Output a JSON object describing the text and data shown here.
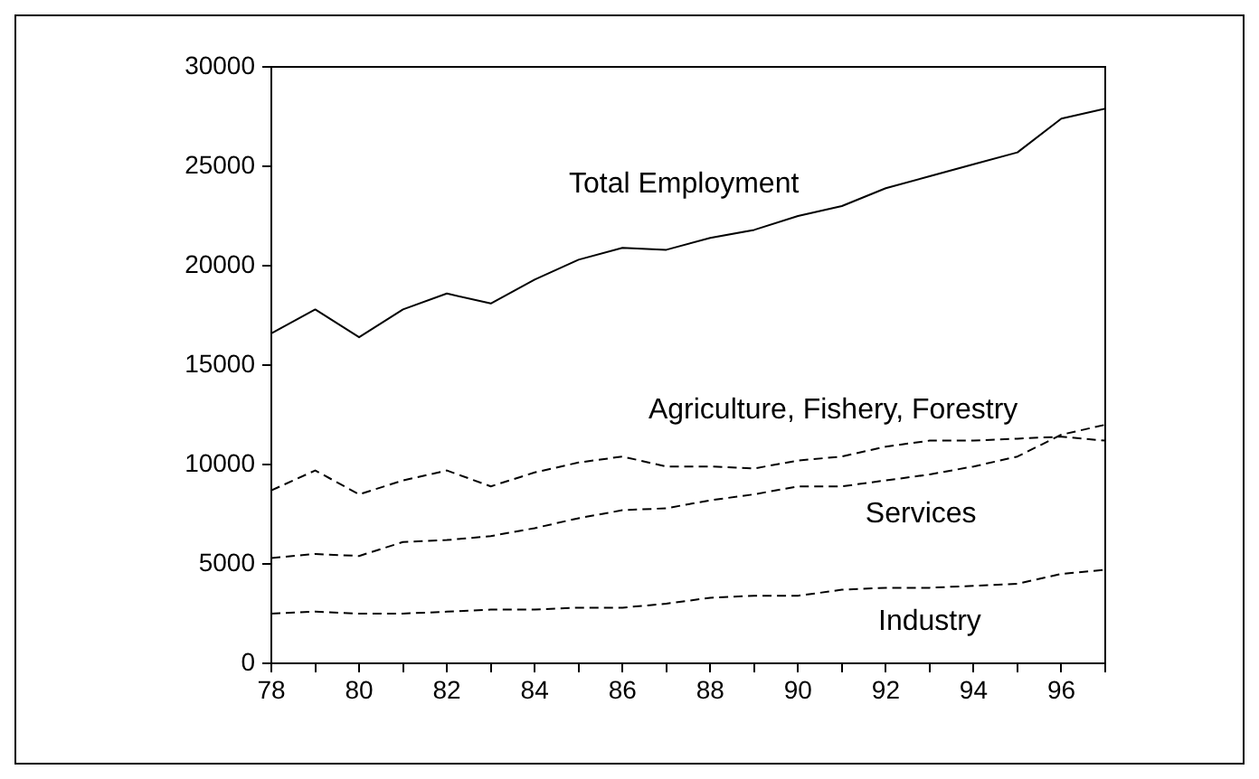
{
  "chart_data": {
    "type": "line",
    "x": [
      78,
      79,
      80,
      81,
      82,
      83,
      84,
      85,
      86,
      87,
      88,
      89,
      90,
      91,
      92,
      93,
      94,
      95,
      96,
      97
    ],
    "xlim": [
      78,
      97
    ],
    "xticks": [
      78,
      {
        "value": 79,
        "label": null
      },
      80,
      {
        "value": 81,
        "label": null
      },
      82,
      {
        "value": 83,
        "label": null
      },
      84,
      {
        "value": 85,
        "label": null
      },
      86,
      {
        "value": 87,
        "label": null
      },
      88,
      {
        "value": 89,
        "label": null
      },
      90,
      {
        "value": 91,
        "label": null
      },
      92,
      {
        "value": 93,
        "label": null
      },
      94,
      {
        "value": 95,
        "label": null
      },
      96,
      {
        "value": 97,
        "label": null
      }
    ],
    "ylim": [
      0,
      30000
    ],
    "yticks": [
      0,
      5000,
      10000,
      15000,
      20000,
      25000,
      30000
    ],
    "grid": false,
    "legend": false,
    "marker": "none",
    "series": [
      {
        "name": "Total Employment",
        "color": "#000000",
        "line_style": "solid",
        "values": [
          16600,
          17800,
          16400,
          17800,
          18600,
          18100,
          19300,
          20300,
          20900,
          20800,
          21400,
          21800,
          22500,
          23000,
          23900,
          24500,
          25100,
          25700,
          27400,
          27900
        ]
      },
      {
        "name": "Agriculture, Fishery, Forestry",
        "color": "#000000",
        "line_style": "dashed",
        "values": [
          8700,
          9700,
          8500,
          9200,
          9700,
          8900,
          9600,
          10100,
          10400,
          9900,
          9900,
          9800,
          10200,
          10400,
          10900,
          11200,
          11200,
          11300,
          11400,
          11200
        ]
      },
      {
        "name": "Services",
        "color": "#000000",
        "line_style": "dashed",
        "values": [
          5300,
          5500,
          5400,
          6100,
          6200,
          6400,
          6800,
          7300,
          7700,
          7800,
          8200,
          8500,
          8900,
          8900,
          9200,
          9500,
          9900,
          10400,
          11500,
          12000
        ]
      },
      {
        "name": "Industry",
        "color": "#000000",
        "line_style": "dashed",
        "values": [
          2500,
          2600,
          2500,
          2500,
          2600,
          2700,
          2700,
          2800,
          2800,
          3000,
          3300,
          3400,
          3400,
          3700,
          3800,
          3800,
          3900,
          4000,
          4500,
          4700
        ]
      }
    ]
  }
}
